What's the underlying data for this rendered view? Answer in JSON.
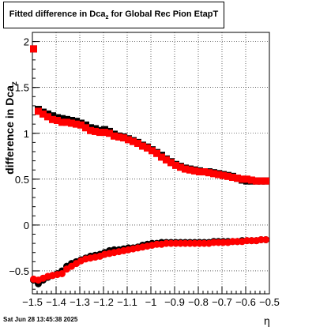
{
  "title": {
    "prefix": "Fitted difference in Dca",
    "sub": "z",
    "suffix": " for Global Rec Pion EtapT"
  },
  "footer": {
    "timestamp": "Sat Jun 28 13:45:38 2025"
  },
  "chart_data": {
    "type": "scatter",
    "xlabel": "η",
    "ylabel": "difference in Dca",
    "ylabel_sub": "z",
    "xlim": [
      -1.5,
      -0.5
    ],
    "ylim": [
      -0.75,
      2.1
    ],
    "grid": true,
    "x_ticks": [
      -1.5,
      -1.4,
      -1.3,
      -1.2,
      -1.1,
      -1,
      -0.9,
      -0.8,
      -0.7,
      -0.6,
      -0.5
    ],
    "x_tick_labels": [
      "−1.5",
      "−1.4",
      "−1.3",
      "−1.2",
      "−1.1",
      "−1",
      "−0.9",
      "−0.8",
      "−0.7",
      "−0.6",
      "−0.5"
    ],
    "y_ticks": [
      -0.5,
      0,
      0.5,
      1,
      1.5,
      2
    ],
    "y_tick_labels": [
      "−0.5",
      "0",
      "0.5",
      "1",
      "1.5",
      "2"
    ],
    "series": [
      {
        "marker": "square",
        "color": "#000000",
        "x": [
          -1.495,
          -1.475,
          -1.455,
          -1.435,
          -1.415,
          -1.395,
          -1.375,
          -1.355,
          -1.335,
          -1.315,
          -1.295,
          -1.275,
          -1.255,
          -1.235,
          -1.215,
          -1.195,
          -1.175,
          -1.155,
          -1.135,
          -1.115,
          -1.095,
          -1.075,
          -1.055,
          -1.035,
          -1.015,
          -0.995,
          -0.975,
          -0.955,
          -0.935,
          -0.915,
          -0.895,
          -0.875,
          -0.855,
          -0.835,
          -0.815,
          -0.795,
          -0.775,
          -0.755,
          -0.735,
          -0.715,
          -0.695,
          -0.675,
          -0.655,
          -0.635,
          -0.615,
          -0.595,
          -0.575,
          -0.555,
          -0.535,
          -0.515
        ],
        "y": [
          1.92,
          1.26,
          1.23,
          1.21,
          1.19,
          1.17,
          1.16,
          1.15,
          1.14,
          1.13,
          1.11,
          1.09,
          1.06,
          1.05,
          1.03,
          1.04,
          1.02,
          0.99,
          0.97,
          0.96,
          0.94,
          0.92,
          0.9,
          0.87,
          0.85,
          0.82,
          0.79,
          0.76,
          0.72,
          0.69,
          0.66,
          0.64,
          0.62,
          0.61,
          0.6,
          0.59,
          0.58,
          0.58,
          0.57,
          0.56,
          0.55,
          0.54,
          0.53,
          0.51,
          0.49,
          0.48,
          0.48,
          0.48,
          0.48,
          0.48
        ]
      },
      {
        "marker": "square",
        "color": "#ff0000",
        "x": [
          -1.495,
          -1.475,
          -1.455,
          -1.435,
          -1.415,
          -1.395,
          -1.375,
          -1.355,
          -1.335,
          -1.315,
          -1.295,
          -1.275,
          -1.255,
          -1.235,
          -1.215,
          -1.195,
          -1.175,
          -1.155,
          -1.135,
          -1.115,
          -1.095,
          -1.075,
          -1.055,
          -1.035,
          -1.015,
          -0.995,
          -0.975,
          -0.955,
          -0.935,
          -0.915,
          -0.895,
          -0.875,
          -0.855,
          -0.835,
          -0.815,
          -0.795,
          -0.775,
          -0.755,
          -0.735,
          -0.715,
          -0.695,
          -0.675,
          -0.655,
          -0.635,
          -0.615,
          -0.595,
          -0.575,
          -0.555,
          -0.535,
          -0.515
        ],
        "y": [
          1.92,
          1.24,
          1.21,
          1.18,
          1.15,
          1.14,
          1.12,
          1.12,
          1.11,
          1.1,
          1.09,
          1.06,
          1.03,
          1.02,
          1.01,
          1.01,
          1.0,
          0.97,
          0.96,
          0.95,
          0.93,
          0.91,
          0.89,
          0.86,
          0.84,
          0.81,
          0.78,
          0.74,
          0.71,
          0.68,
          0.65,
          0.63,
          0.61,
          0.6,
          0.59,
          0.58,
          0.58,
          0.57,
          0.56,
          0.55,
          0.54,
          0.53,
          0.52,
          0.51,
          0.5,
          0.5,
          0.49,
          0.48,
          0.48,
          0.48
        ]
      },
      {
        "marker": "circle",
        "color": "#000000",
        "x": [
          -1.495,
          -1.475,
          -1.455,
          -1.435,
          -1.415,
          -1.395,
          -1.375,
          -1.355,
          -1.335,
          -1.315,
          -1.295,
          -1.275,
          -1.255,
          -1.235,
          -1.215,
          -1.195,
          -1.175,
          -1.155,
          -1.135,
          -1.115,
          -1.095,
          -1.075,
          -1.055,
          -1.035,
          -1.015,
          -0.995,
          -0.975,
          -0.955,
          -0.935,
          -0.915,
          -0.895,
          -0.875,
          -0.855,
          -0.835,
          -0.815,
          -0.795,
          -0.775,
          -0.755,
          -0.735,
          -0.715,
          -0.695,
          -0.675,
          -0.655,
          -0.635,
          -0.615,
          -0.595,
          -0.575,
          -0.555,
          -0.535,
          -0.515
        ],
        "y": [
          -0.6,
          -0.64,
          -0.6,
          -0.57,
          -0.55,
          -0.53,
          -0.5,
          -0.45,
          -0.42,
          -0.4,
          -0.38,
          -0.36,
          -0.34,
          -0.33,
          -0.32,
          -0.3,
          -0.28,
          -0.27,
          -0.27,
          -0.26,
          -0.25,
          -0.25,
          -0.24,
          -0.22,
          -0.21,
          -0.2,
          -0.2,
          -0.19,
          -0.19,
          -0.19,
          -0.19,
          -0.19,
          -0.19,
          -0.19,
          -0.19,
          -0.19,
          -0.19,
          -0.19,
          -0.18,
          -0.18,
          -0.18,
          -0.18,
          -0.18,
          -0.18,
          -0.17,
          -0.17,
          -0.17,
          -0.17,
          -0.16,
          -0.16
        ]
      },
      {
        "marker": "circle",
        "color": "#ff0000",
        "x": [
          -1.495,
          -1.475,
          -1.455,
          -1.435,
          -1.415,
          -1.395,
          -1.375,
          -1.355,
          -1.335,
          -1.315,
          -1.295,
          -1.275,
          -1.255,
          -1.235,
          -1.215,
          -1.195,
          -1.175,
          -1.155,
          -1.135,
          -1.115,
          -1.095,
          -1.075,
          -1.055,
          -1.035,
          -1.015,
          -0.995,
          -0.975,
          -0.955,
          -0.935,
          -0.915,
          -0.895,
          -0.875,
          -0.855,
          -0.835,
          -0.815,
          -0.795,
          -0.775,
          -0.755,
          -0.735,
          -0.715,
          -0.695,
          -0.675,
          -0.655,
          -0.635,
          -0.615,
          -0.595,
          -0.575,
          -0.555,
          -0.535,
          -0.515
        ],
        "y": [
          -0.59,
          -0.6,
          -0.58,
          -0.56,
          -0.55,
          -0.54,
          -0.53,
          -0.48,
          -0.45,
          -0.42,
          -0.39,
          -0.37,
          -0.36,
          -0.35,
          -0.34,
          -0.32,
          -0.31,
          -0.3,
          -0.29,
          -0.28,
          -0.27,
          -0.26,
          -0.25,
          -0.24,
          -0.23,
          -0.22,
          -0.21,
          -0.21,
          -0.2,
          -0.2,
          -0.2,
          -0.2,
          -0.2,
          -0.2,
          -0.2,
          -0.2,
          -0.2,
          -0.2,
          -0.19,
          -0.19,
          -0.19,
          -0.19,
          -0.18,
          -0.18,
          -0.18,
          -0.17,
          -0.17,
          -0.17,
          -0.16,
          -0.16
        ]
      }
    ]
  }
}
